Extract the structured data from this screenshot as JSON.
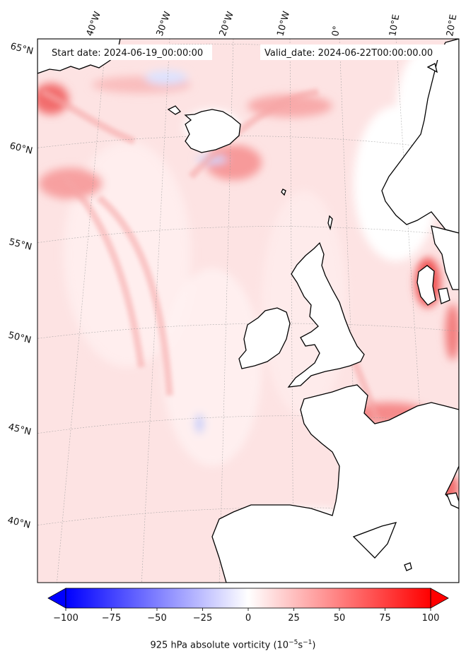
{
  "header": {
    "start_date": "Start date: 2024-06-19_00:00:00",
    "valid_date": "Valid_date: 2024-06-22T00:00:00.00"
  },
  "longitude_labels": [
    "40°W",
    "30°W",
    "20°W",
    "10°W",
    "0°",
    "10°E",
    "20°E"
  ],
  "latitude_labels": [
    "65°N",
    "60°N",
    "55°N",
    "50°N",
    "45°N",
    "40°N"
  ],
  "colorbar": {
    "title_main": "925 hPa absolute vorticity (10",
    "title_exp1": "−5",
    "title_mid": "s",
    "title_exp2": "−1",
    "title_end": ")",
    "tick_labels": [
      "−100",
      "−75",
      "−50",
      "−25",
      "0",
      "25",
      "50",
      "75",
      "100"
    ],
    "min": -100,
    "max": 100,
    "extend": "both",
    "colormap": "bwr",
    "colors": {
      "negative": "#0000ff",
      "zero": "#ffffff",
      "positive": "#ff0000"
    }
  },
  "map": {
    "projection": "conic",
    "region": "North Atlantic and Western Europe",
    "field": "925 hPa absolute vorticity",
    "coastline_color": "#000000",
    "gridline_style": "dotted grey"
  }
}
